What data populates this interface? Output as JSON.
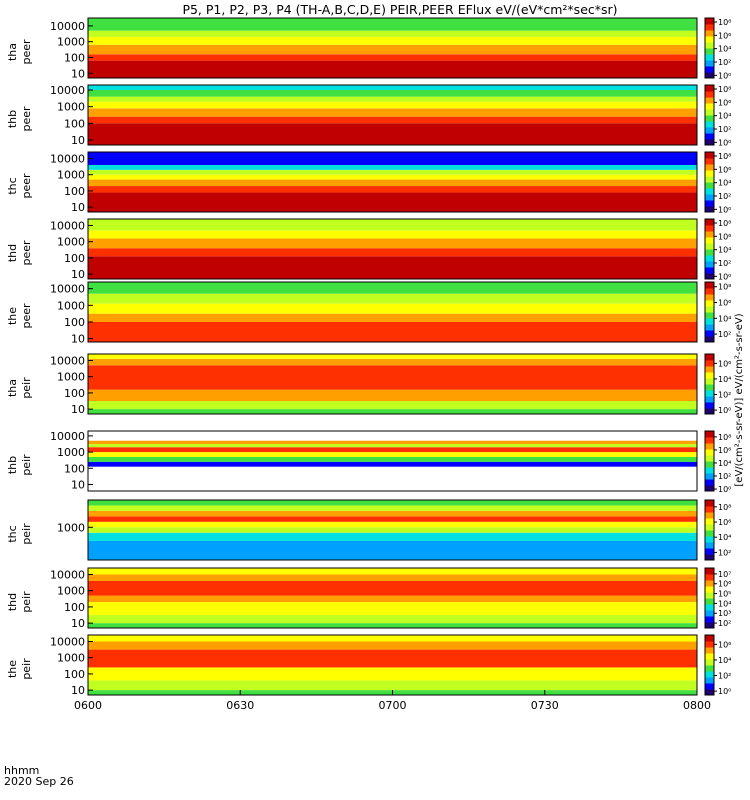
{
  "chart_data": {
    "type": "heatmap",
    "title": "P5, P1, P2, P3, P4 (TH-A,B,C,D,E) PEIR,PEER EFlux eV/(eV*cm²*sec*sr)",
    "x_axis": {
      "ticks": [
        "0600",
        "0630",
        "0700",
        "0730",
        "0800"
      ],
      "range_minutes": [
        0,
        120
      ],
      "label_line1": "hhmm",
      "label_line2": "2020 Sep 26"
    },
    "colorbar_label": "[eV/(cm²-s-sr-eV)] eV/(cm²-s-sr-eV)",
    "colormap": [
      "#200070",
      "#0000ff",
      "#00a0ff",
      "#00e0e0",
      "#40e040",
      "#c0ff20",
      "#ffff00",
      "#ffa000",
      "#ff3000",
      "#c00000"
    ],
    "panels": [
      {
        "label1": "tha",
        "label2": "peer",
        "yticks": [
          "10",
          "100",
          "1000",
          "10000"
        ],
        "ylog": [
          0.7,
          4.5
        ],
        "cbar_ticks": [
          "10⁸",
          "10⁶",
          "10⁴",
          "10²",
          "10⁰"
        ],
        "cbar_log": [
          -0.4,
          8.6
        ],
        "bands": [
          [
            0.7,
            1.8,
            9
          ],
          [
            1.8,
            2.2,
            8
          ],
          [
            2.2,
            2.8,
            7
          ],
          [
            2.8,
            3.3,
            6
          ],
          [
            3.3,
            3.7,
            5
          ],
          [
            3.7,
            4.5,
            4
          ]
        ]
      },
      {
        "label1": "thb",
        "label2": "peer",
        "yticks": [
          "10",
          "100",
          "1000",
          "10000"
        ],
        "ylog": [
          0.7,
          4.3
        ],
        "cbar_ticks": [
          "10⁸",
          "10⁶",
          "10⁴",
          "10²",
          "10⁰"
        ],
        "cbar_log": [
          -0.4,
          8.6
        ],
        "bands": [
          [
            0.7,
            2.0,
            9
          ],
          [
            2.0,
            2.4,
            8
          ],
          [
            2.4,
            2.9,
            7
          ],
          [
            2.9,
            3.3,
            6
          ],
          [
            3.3,
            3.6,
            5
          ],
          [
            3.6,
            4.0,
            4
          ],
          [
            4.0,
            4.3,
            3
          ]
        ]
      },
      {
        "label1": "thc",
        "label2": "peer",
        "yticks": [
          "10",
          "100",
          "1000",
          "10000"
        ],
        "ylog": [
          0.7,
          4.4
        ],
        "cbar_ticks": [
          "10⁸",
          "10⁶",
          "10⁴",
          "10²",
          "10⁰"
        ],
        "cbar_log": [
          -0.4,
          8.6
        ],
        "bands": [
          [
            0.7,
            1.9,
            9
          ],
          [
            1.9,
            2.3,
            8
          ],
          [
            2.3,
            2.7,
            7
          ],
          [
            2.7,
            3.0,
            6
          ],
          [
            3.0,
            3.3,
            5
          ],
          [
            3.3,
            3.6,
            3
          ],
          [
            3.6,
            4.4,
            1
          ]
        ]
      },
      {
        "label1": "thd",
        "label2": "peer",
        "yticks": [
          "10",
          "100",
          "1000",
          "10000"
        ],
        "ylog": [
          0.7,
          4.4
        ],
        "cbar_ticks": [
          "10⁸",
          "10⁶",
          "10⁴",
          "10²",
          "10⁰"
        ],
        "cbar_log": [
          -0.4,
          8.6
        ],
        "bands": [
          [
            0.7,
            2.1,
            9
          ],
          [
            2.1,
            2.6,
            8
          ],
          [
            2.6,
            3.2,
            7
          ],
          [
            3.2,
            3.7,
            6
          ],
          [
            3.7,
            4.4,
            5
          ]
        ]
      },
      {
        "label1": "the",
        "label2": "peer",
        "yticks": [
          "10",
          "100",
          "1000",
          "10000"
        ],
        "ylog": [
          0.8,
          4.4
        ],
        "cbar_ticks": [
          "10⁸",
          "10⁶",
          "10⁴",
          "10²"
        ],
        "cbar_log": [
          1.0,
          8.6
        ],
        "bands": [
          [
            0.8,
            2.0,
            8
          ],
          [
            2.0,
            2.5,
            7
          ],
          [
            2.5,
            3.1,
            6
          ],
          [
            3.1,
            3.7,
            5
          ],
          [
            3.7,
            4.4,
            4
          ]
        ]
      },
      {
        "label1": "tha",
        "label2": "peir",
        "yticks": [
          "10",
          "100",
          "1000",
          "10000"
        ],
        "ylog": [
          0.7,
          4.4
        ],
        "cbar_ticks": [
          "10⁶",
          "10⁴",
          "10²",
          "10⁰"
        ],
        "cbar_log": [
          -0.5,
          7.2
        ],
        "bands": [
          [
            0.7,
            1.0,
            4
          ],
          [
            1.0,
            1.5,
            5
          ],
          [
            1.5,
            2.2,
            7
          ],
          [
            2.2,
            3.7,
            8
          ],
          [
            3.7,
            4.1,
            7
          ],
          [
            4.1,
            4.4,
            6
          ]
        ]
      },
      {
        "label1": "thb",
        "label2": "peir",
        "yticks": [
          "10",
          "100",
          "1000",
          "10000"
        ],
        "ylog": [
          0.6,
          4.3
        ],
        "cbar_ticks": [
          "10⁸",
          "10⁶",
          "10⁴",
          "10²",
          "10⁰"
        ],
        "cbar_log": [
          -0.3,
          8.9
        ],
        "bands": [
          [
            2.1,
            2.4,
            1
          ],
          [
            2.4,
            2.7,
            4
          ],
          [
            2.7,
            3.0,
            6
          ],
          [
            3.0,
            3.3,
            8
          ],
          [
            3.3,
            3.5,
            5
          ],
          [
            3.5,
            3.7,
            7
          ]
        ]
      },
      {
        "label1": "thc",
        "label2": "peir",
        "yticks": [
          "1000"
        ],
        "ylog": [
          1.8,
          4.0
        ],
        "cbar_ticks": [
          "10⁸",
          "10⁶",
          "10⁴",
          "10²"
        ],
        "cbar_log": [
          1.0,
          8.9
        ],
        "bands": [
          [
            1.8,
            2.5,
            2
          ],
          [
            2.5,
            2.8,
            3
          ],
          [
            2.8,
            3.0,
            5
          ],
          [
            3.0,
            3.2,
            6
          ],
          [
            3.2,
            3.4,
            8
          ],
          [
            3.4,
            3.6,
            7
          ],
          [
            3.6,
            3.8,
            5
          ],
          [
            3.8,
            4.0,
            4
          ]
        ]
      },
      {
        "label1": "thd",
        "label2": "peir",
        "yticks": [
          "10",
          "100",
          "1000",
          "10000"
        ],
        "ylog": [
          0.7,
          4.4
        ],
        "cbar_ticks": [
          "10⁷",
          "10⁶",
          "10⁵",
          "10⁴",
          "10³",
          "10²"
        ],
        "cbar_log": [
          1.5,
          7.6
        ],
        "bands": [
          [
            0.7,
            1.0,
            4
          ],
          [
            1.0,
            1.5,
            5
          ],
          [
            1.5,
            2.3,
            6
          ],
          [
            2.3,
            2.7,
            7
          ],
          [
            2.7,
            3.6,
            8
          ],
          [
            3.6,
            4.0,
            7
          ],
          [
            4.0,
            4.4,
            6
          ]
        ]
      },
      {
        "label1": "the",
        "label2": "peir",
        "yticks": [
          "10",
          "100",
          "1000",
          "10000"
        ],
        "ylog": [
          0.7,
          4.4
        ],
        "cbar_ticks": [
          "10⁶",
          "10⁴",
          "10²",
          "10⁰"
        ],
        "cbar_log": [
          -0.5,
          7.2
        ],
        "bands": [
          [
            0.7,
            1.0,
            4
          ],
          [
            1.0,
            1.6,
            5
          ],
          [
            1.6,
            2.4,
            6
          ],
          [
            2.4,
            3.5,
            8
          ],
          [
            3.5,
            4.0,
            7
          ],
          [
            4.0,
            4.4,
            6
          ]
        ]
      }
    ]
  }
}
